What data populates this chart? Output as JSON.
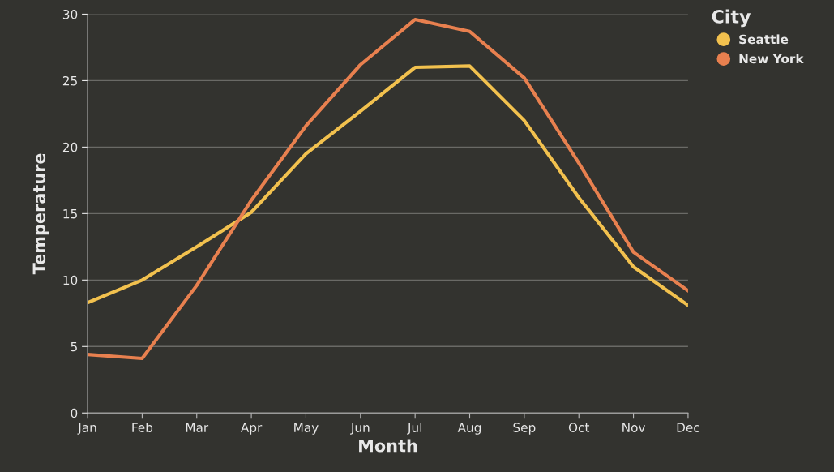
{
  "chart_data": {
    "type": "line",
    "xlabel": "Month",
    "ylabel": "Temperature",
    "legend_title": "City",
    "legend": "right",
    "categories": [
      "Jan",
      "Feb",
      "Mar",
      "Apr",
      "May",
      "Jun",
      "Jul",
      "Aug",
      "Sep",
      "Oct",
      "Nov",
      "Dec"
    ],
    "series": [
      {
        "name": "Seattle",
        "color": "#f2c14e",
        "values": [
          8.3,
          10.0,
          12.5,
          15.1,
          19.5,
          22.7,
          26.0,
          26.1,
          22.0,
          16.2,
          11.0,
          8.1
        ]
      },
      {
        "name": "New York",
        "color": "#e8804f",
        "values": [
          4.4,
          4.1,
          9.6,
          16.0,
          21.6,
          26.2,
          29.6,
          28.7,
          25.2,
          18.8,
          12.1,
          9.2
        ]
      }
    ],
    "ylim": [
      0,
      30
    ],
    "yticks": [
      0,
      5,
      10,
      15,
      20,
      25,
      30
    ],
    "grid": "y"
  }
}
